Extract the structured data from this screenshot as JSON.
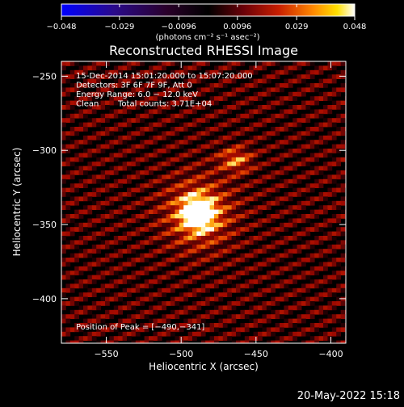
{
  "chart_data": {
    "type": "heatmap",
    "title": "Reconstructed RHESSI Image",
    "xlabel": "Heliocentric X (arcsec)",
    "ylabel": "Heliocentric Y (arcsec)",
    "xlim": [
      -580,
      -390
    ],
    "ylim": [
      -430,
      -240
    ],
    "x_ticks": [
      -550,
      -500,
      -450,
      -400
    ],
    "x_tick_labels": [
      "−550",
      "−500",
      "−450",
      "−400"
    ],
    "y_ticks": [
      -250,
      -300,
      -350,
      -400
    ],
    "y_tick_labels": [
      "−250",
      "−300",
      "−350",
      "−400"
    ],
    "annotations": [
      "15-Dec-2014 15:01:20.000 to 15:07:20.000",
      "Detectors: 3F 6F 7F 9F, Att 0",
      "Energy Range: 6.0 − 12.0 keV",
      "Clean",
      "Total counts: 3.71E+04"
    ],
    "peak": {
      "label": "Position of Peak = [−490,−341]",
      "x": -490,
      "y": -341
    },
    "secondary_source": {
      "x": -465,
      "y": -305
    },
    "colorbar": {
      "min": -0.048,
      "max": 0.048,
      "ticks": [
        -0.048,
        -0.029,
        -0.0096,
        0.0096,
        0.029,
        0.048
      ],
      "tick_labels": [
        "−0.048",
        "−0.029",
        "−0.0096",
        "0.0096",
        "0.029",
        "0.048"
      ],
      "unit_label": "(photons cm⁻² s⁻¹ asec⁻²)"
    },
    "colormap_stops": [
      "#0000ff",
      "#3a0a6a",
      "#000000",
      "#6a0008",
      "#c81e00",
      "#ff8000",
      "#ffd000",
      "#ffffff"
    ]
  },
  "footer": {
    "timestamp": "20-May-2022 15:18"
  }
}
